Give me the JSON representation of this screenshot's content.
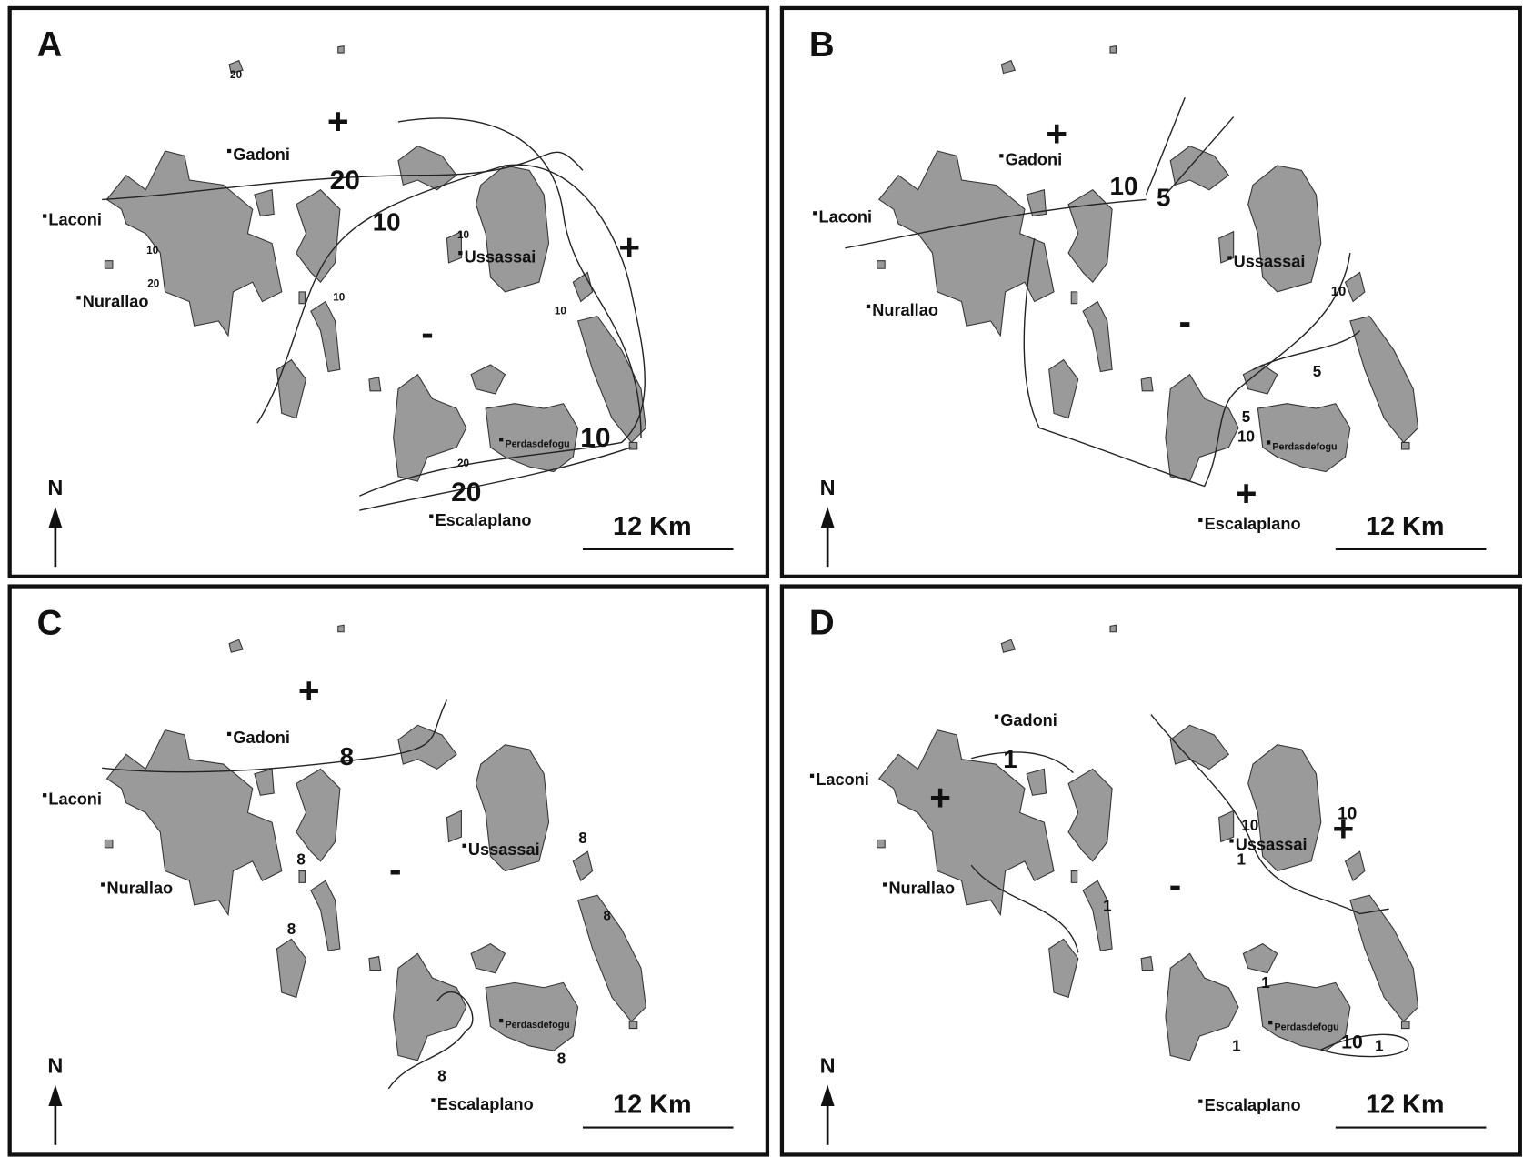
{
  "panels": [
    {
      "label": "A",
      "places": [
        "Gadoni",
        "Laconi",
        "Nurallao",
        "Ussassai",
        "Perdasdefogu",
        "Escalaplano"
      ],
      "contour_labels": [
        "20",
        "10",
        "10",
        "20",
        "10",
        "10",
        "10",
        "20",
        "10",
        "20",
        "20"
      ],
      "signs": [
        "+",
        "+",
        "-"
      ],
      "north": "N",
      "scale": "12 Km"
    },
    {
      "label": "B",
      "places": [
        "Gadoni",
        "Laconi",
        "Nurallao",
        "Ussassai",
        "Perdasdefogu",
        "Escalaplano"
      ],
      "contour_labels": [
        "10",
        "5",
        "10",
        "5",
        "5",
        "10"
      ],
      "signs": [
        "+",
        "+",
        "-"
      ],
      "north": "N",
      "scale": "12 Km"
    },
    {
      "label": "C",
      "places": [
        "Gadoni",
        "Laconi",
        "Nurallao",
        "Ussassai",
        "Perdasdefogu",
        "Escalaplano"
      ],
      "contour_labels": [
        "8",
        "8",
        "8",
        "8",
        "8",
        "8",
        "8"
      ],
      "signs": [
        "+",
        "-"
      ],
      "north": "N",
      "scale": "12 Km"
    },
    {
      "label": "D",
      "places": [
        "Gadoni",
        "Laconi",
        "Nurallao",
        "Ussassai",
        "Perdasdefogu",
        "Escalaplano"
      ],
      "contour_labels": [
        "1",
        "10",
        "1",
        "10",
        "1",
        "1",
        "1",
        "10",
        "1"
      ],
      "signs": [
        "+",
        "+",
        "-"
      ],
      "north": "N",
      "scale": "12 Km"
    }
  ]
}
